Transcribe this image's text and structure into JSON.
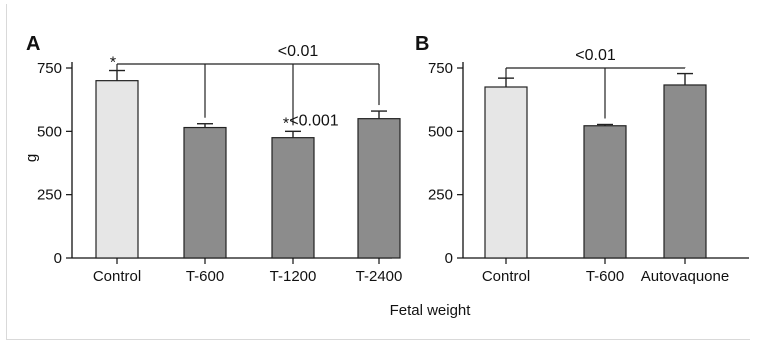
{
  "colors": {
    "control": "#e6e6e6",
    "treatment": "#8c8c8c",
    "axis": "#111111"
  },
  "footer": {
    "xlabel": "Fetal weight"
  },
  "chart_data": [
    {
      "type": "bar",
      "panel": "A",
      "categories": [
        "Control",
        "T-600",
        "T-1200",
        "T-2400"
      ],
      "values": [
        700,
        515,
        475,
        550
      ],
      "errors": [
        40,
        15,
        25,
        30
      ],
      "bar_colors": [
        "control",
        "treatment",
        "treatment",
        "treatment"
      ],
      "ylabel": "g",
      "ylim": [
        0,
        750
      ],
      "yticks": [
        0,
        250,
        500,
        750
      ],
      "annotations": [
        {
          "text": "<0.01",
          "type": "bracket",
          "from": 0,
          "to": 3,
          "y": 760
        },
        {
          "text": "*",
          "type": "star",
          "category": 0
        },
        {
          "text": "*",
          "type": "star",
          "category": 2
        },
        {
          "text": "<0.001",
          "type": "label",
          "category": 2
        }
      ]
    },
    {
      "type": "bar",
      "panel": "B",
      "categories": [
        "Control",
        "T-600",
        "Autovaquone"
      ],
      "values": [
        675,
        522,
        683
      ],
      "errors": [
        35,
        5,
        45
      ],
      "bar_colors": [
        "control",
        "treatment",
        "treatment"
      ],
      "ylabel": "",
      "ylim": [
        0,
        750
      ],
      "yticks": [
        0,
        250,
        500,
        750
      ],
      "annotations": [
        {
          "text": "<0.01",
          "type": "bracket",
          "from": 0,
          "to": 2,
          "y": 745
        }
      ]
    }
  ]
}
